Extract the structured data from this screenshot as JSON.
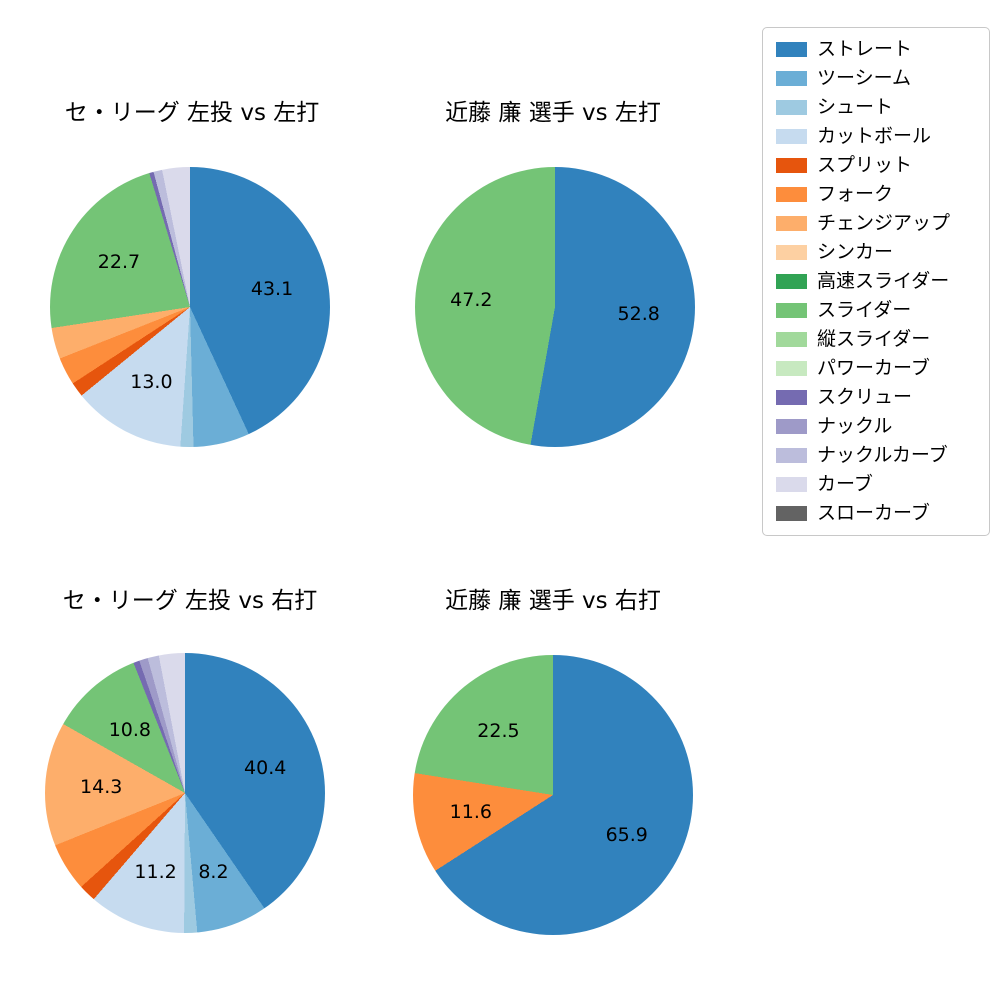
{
  "figure": {
    "background": "#ffffff"
  },
  "legend": {
    "position": "top-right",
    "border_color": "#c8c8c8",
    "items": [
      {
        "label": "ストレート",
        "color": "#3182bd"
      },
      {
        "label": "ツーシーム",
        "color": "#6baed6"
      },
      {
        "label": "シュート",
        "color": "#9ecae1"
      },
      {
        "label": "カットボール",
        "color": "#c6dbef"
      },
      {
        "label": "スプリット",
        "color": "#e6550d"
      },
      {
        "label": "フォーク",
        "color": "#fd8d3c"
      },
      {
        "label": "チェンジアップ",
        "color": "#fdae6b"
      },
      {
        "label": "シンカー",
        "color": "#fdd0a2"
      },
      {
        "label": "高速スライダー",
        "color": "#31a354"
      },
      {
        "label": "スライダー",
        "color": "#74c476"
      },
      {
        "label": "縦スライダー",
        "color": "#a1d99b"
      },
      {
        "label": "パワーカーブ",
        "color": "#c7e9c0"
      },
      {
        "label": "スクリュー",
        "color": "#756bb1"
      },
      {
        "label": "ナックル",
        "color": "#9e9ac8"
      },
      {
        "label": "ナックルカーブ",
        "color": "#bcbddc"
      },
      {
        "label": "カーブ",
        "color": "#dadaeb"
      },
      {
        "label": "スローカーブ",
        "color": "#636363"
      }
    ]
  },
  "chart_data": [
    {
      "type": "pie",
      "title": "セ・リーグ 左投 vs 左打",
      "start_angle": "top",
      "direction": "clockwise",
      "unit": "percent",
      "slices": [
        {
          "name": "ストレート",
          "value": 43.1,
          "label": "43.1"
        },
        {
          "name": "ツーシーム",
          "value": 6.5,
          "label": null
        },
        {
          "name": "シュート",
          "value": 1.5,
          "label": null
        },
        {
          "name": "カットボール",
          "value": 13.0,
          "label": "13.0"
        },
        {
          "name": "スプリット",
          "value": 1.7,
          "label": null
        },
        {
          "name": "フォーク",
          "value": 3.2,
          "label": null
        },
        {
          "name": "チェンジアップ",
          "value": 3.6,
          "label": null
        },
        {
          "name": "スライダー",
          "value": 22.7,
          "label": "22.7"
        },
        {
          "name": "スクリュー",
          "value": 0.5,
          "label": null
        },
        {
          "name": "ナックルカーブ",
          "value": 1.0,
          "label": null
        },
        {
          "name": "カーブ",
          "value": 3.2,
          "label": null
        }
      ]
    },
    {
      "type": "pie",
      "title": "近藤 廉 選手 vs 左打",
      "start_angle": "top",
      "direction": "clockwise",
      "unit": "percent",
      "slices": [
        {
          "name": "ストレート",
          "value": 52.8,
          "label": "52.8"
        },
        {
          "name": "スライダー",
          "value": 47.2,
          "label": "47.2"
        }
      ]
    },
    {
      "type": "pie",
      "title": "セ・リーグ 左投 vs 右打",
      "start_angle": "top",
      "direction": "clockwise",
      "unit": "percent",
      "slices": [
        {
          "name": "ストレート",
          "value": 40.4,
          "label": "40.4"
        },
        {
          "name": "ツーシーム",
          "value": 8.2,
          "label": "8.2"
        },
        {
          "name": "シュート",
          "value": 1.5,
          "label": null
        },
        {
          "name": "カットボール",
          "value": 11.2,
          "label": "11.2"
        },
        {
          "name": "スプリット",
          "value": 2.0,
          "label": null
        },
        {
          "name": "フォーク",
          "value": 5.6,
          "label": null
        },
        {
          "name": "チェンジアップ",
          "value": 14.3,
          "label": "14.3"
        },
        {
          "name": "スライダー",
          "value": 10.8,
          "label": "10.8"
        },
        {
          "name": "スクリュー",
          "value": 0.7,
          "label": null
        },
        {
          "name": "ナックル",
          "value": 1.0,
          "label": null
        },
        {
          "name": "ナックルカーブ",
          "value": 1.3,
          "label": null
        },
        {
          "name": "カーブ",
          "value": 3.0,
          "label": null
        }
      ]
    },
    {
      "type": "pie",
      "title": "近藤 廉 選手 vs 右打",
      "start_angle": "top",
      "direction": "clockwise",
      "unit": "percent",
      "slices": [
        {
          "name": "ストレート",
          "value": 65.9,
          "label": "65.9"
        },
        {
          "name": "フォーク",
          "value": 11.6,
          "label": "11.6"
        },
        {
          "name": "スライダー",
          "value": 22.5,
          "label": "22.5"
        }
      ]
    }
  ]
}
